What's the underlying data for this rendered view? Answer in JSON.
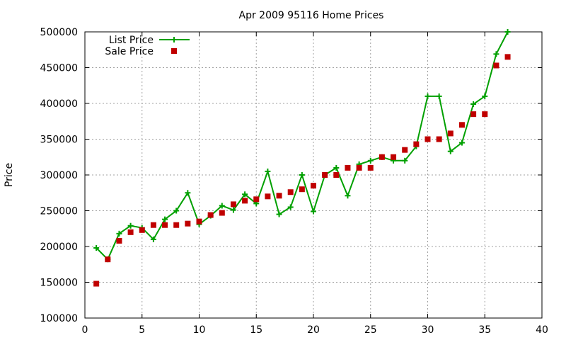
{
  "chart_data": {
    "type": "line",
    "title": "Apr 2009 95116 Home Prices",
    "xlabel": "",
    "ylabel": "Price",
    "xlim": [
      0,
      40
    ],
    "ylim": [
      100000,
      500000
    ],
    "x_ticks": [
      0,
      5,
      10,
      15,
      20,
      25,
      30,
      35,
      40
    ],
    "y_ticks": [
      100000,
      150000,
      200000,
      250000,
      300000,
      350000,
      400000,
      450000,
      500000
    ],
    "grid": true,
    "legend_position": "top-left",
    "series": [
      {
        "name": "List Price",
        "style": "line-with-plus-markers",
        "color": "#00a000",
        "x": [
          1,
          2,
          3,
          4,
          5,
          6,
          7,
          8,
          9,
          10,
          11,
          12,
          13,
          14,
          15,
          16,
          17,
          18,
          19,
          20,
          21,
          22,
          23,
          24,
          25,
          26,
          27,
          28,
          29,
          30,
          31,
          32,
          33,
          34,
          35,
          36,
          37
        ],
        "values": [
          198000,
          182000,
          218000,
          229000,
          226000,
          210000,
          238000,
          250000,
          275000,
          231000,
          243000,
          257000,
          251000,
          273000,
          260000,
          305000,
          245000,
          255000,
          300000,
          249000,
          300000,
          310000,
          271000,
          315000,
          320000,
          325000,
          320000,
          320000,
          340000,
          410000,
          410000,
          333000,
          345000,
          399000,
          410000,
          469000,
          500000
        ]
      },
      {
        "name": "Sale Price",
        "style": "square-markers",
        "color": "#c00000",
        "x": [
          1,
          2,
          3,
          4,
          5,
          6,
          7,
          8,
          9,
          10,
          11,
          12,
          13,
          14,
          15,
          16,
          17,
          18,
          19,
          20,
          21,
          22,
          23,
          24,
          25,
          26,
          27,
          28,
          29,
          30,
          31,
          32,
          33,
          34,
          35,
          36,
          37
        ],
        "values": [
          148000,
          182000,
          208000,
          220000,
          223000,
          230000,
          230000,
          230000,
          232000,
          235000,
          244000,
          247000,
          259000,
          264000,
          266000,
          270000,
          271000,
          276000,
          280000,
          285000,
          300000,
          300000,
          310000,
          310000,
          310000,
          325000,
          325000,
          335000,
          343000,
          350000,
          350000,
          358000,
          370000,
          385000,
          385000,
          453000,
          465000
        ]
      }
    ]
  }
}
